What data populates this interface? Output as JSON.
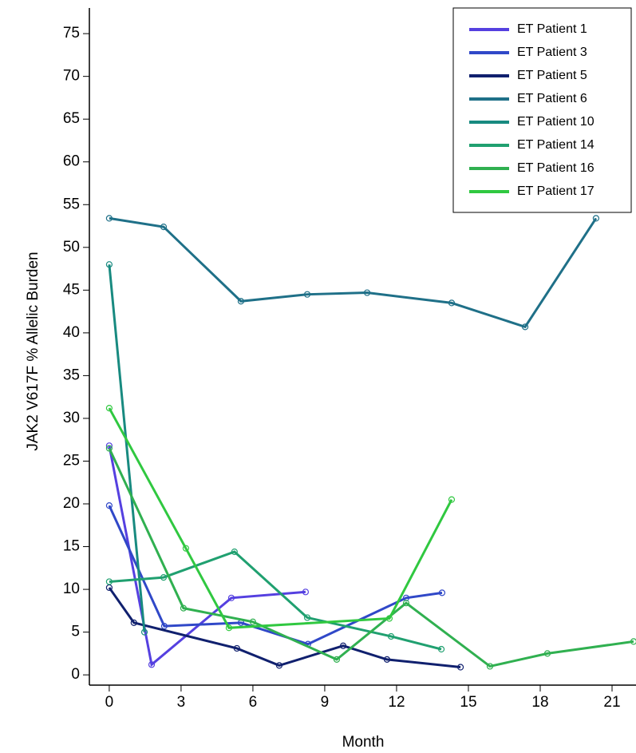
{
  "chart_data": {
    "type": "line",
    "x_label": "Month",
    "y_label": "JAK2 V617F % Allelic Burden",
    "xlim": [
      -0.83,
      22
    ],
    "xticks": [
      0,
      3,
      6,
      9,
      12,
      15,
      18,
      21
    ],
    "ylim": [
      -1.2,
      78
    ],
    "yticks": [
      0,
      5,
      10,
      15,
      20,
      25,
      30,
      35,
      40,
      45,
      50,
      55,
      60,
      65,
      70,
      75
    ],
    "legend": "top-right",
    "series": [
      {
        "name": "ET Patient 1",
        "color": "#5540e0",
        "x": [
          0,
          1.77,
          5.1,
          8.2
        ],
        "values": [
          26.8,
          1.2,
          9.0,
          9.7
        ]
      },
      {
        "name": "ET Patient 3",
        "color": "#3048c8",
        "x": [
          0,
          2.3,
          5.5,
          8.3,
          12.4,
          13.9
        ],
        "values": [
          19.8,
          5.7,
          6.1,
          3.6,
          9.0,
          9.6
        ]
      },
      {
        "name": "ET Patient 5",
        "color": "#10206e",
        "x": [
          0,
          1.03,
          5.33,
          7.1,
          9.77,
          11.6,
          14.67
        ],
        "values": [
          10.2,
          6.1,
          3.1,
          1.1,
          3.4,
          1.8,
          0.9
        ]
      },
      {
        "name": "ET Patient 6",
        "color": "#1f7088",
        "x": [
          0,
          2.27,
          5.5,
          8.27,
          10.77,
          14.3,
          17.37,
          20.33
        ],
        "values": [
          53.4,
          52.4,
          43.7,
          44.5,
          44.7,
          43.5,
          40.7,
          53.4
        ]
      },
      {
        "name": "ET Patient 10",
        "color": "#188a80",
        "x": [
          0,
          1.47
        ],
        "values": [
          48.0,
          5.0
        ]
      },
      {
        "name": "ET Patient 14",
        "color": "#20a070",
        "x": [
          0,
          2.27,
          5.23,
          8.27,
          11.77,
          13.87
        ],
        "values": [
          10.9,
          11.4,
          14.4,
          6.7,
          4.5,
          3.0
        ]
      },
      {
        "name": "ET Patient 16",
        "color": "#30b050",
        "x": [
          0,
          3.1,
          6,
          9.5,
          12.4,
          15.9,
          18.3,
          21.9
        ],
        "values": [
          26.5,
          7.8,
          6.2,
          1.8,
          8.4,
          1.0,
          2.5,
          3.9
        ]
      },
      {
        "name": "ET Patient 17",
        "color": "#30c840",
        "x": [
          0,
          3.2,
          5.0,
          11.7,
          14.3
        ],
        "values": [
          31.2,
          14.8,
          5.5,
          6.6,
          20.5
        ]
      }
    ]
  }
}
